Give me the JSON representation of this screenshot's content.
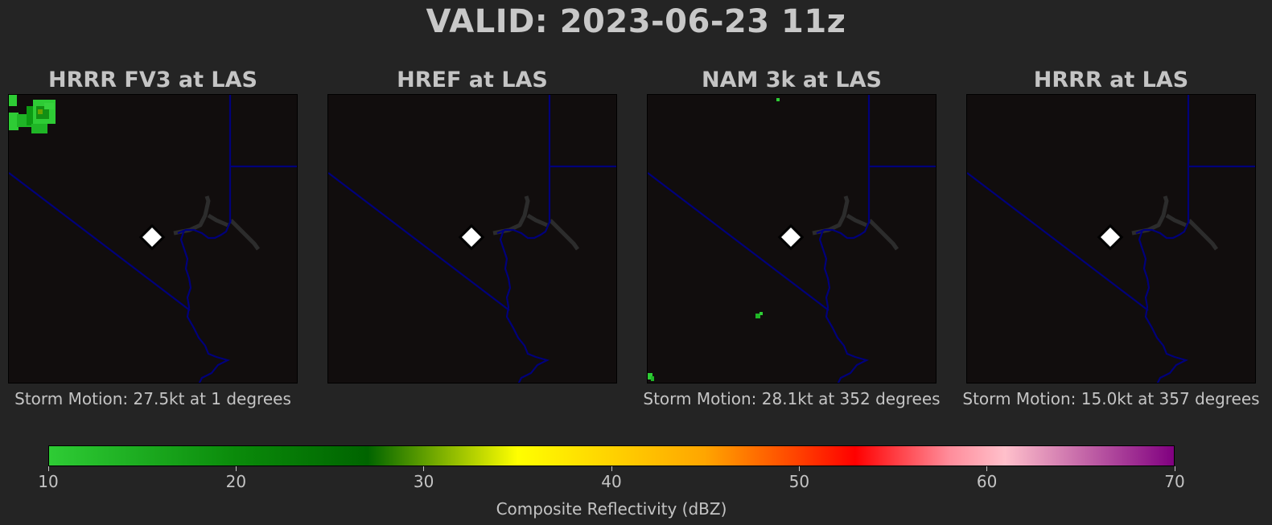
{
  "title": "VALID: 2023-06-23 11z",
  "panels": [
    {
      "title": "HRRR FV3 at LAS",
      "motion": "Storm Motion: 27.5kt at 1 degrees"
    },
    {
      "title": "HREF at LAS",
      "motion": ""
    },
    {
      "title": "NAM 3k at LAS",
      "motion": "Storm Motion: 28.1kt at 352 degrees"
    },
    {
      "title": "HRRR at LAS",
      "motion": "Storm Motion: 15.0kt at 357 degrees"
    }
  ],
  "colorbar": {
    "label": "Composite Reflectivity (dBZ)",
    "ticks": [
      "10",
      "20",
      "30",
      "40",
      "50",
      "60",
      "70"
    ],
    "min": 10,
    "max": 70,
    "stops": [
      {
        "value": 10,
        "color": "#2ecc35"
      },
      {
        "value": 20,
        "color": "#0a8a0a"
      },
      {
        "value": 27,
        "color": "#006400"
      },
      {
        "value": 35,
        "color": "#ffff00"
      },
      {
        "value": 45,
        "color": "#ffa500"
      },
      {
        "value": 50,
        "color": "#ff4000"
      },
      {
        "value": 53,
        "color": "#ff0000"
      },
      {
        "value": 58,
        "color": "#ff8c9a"
      },
      {
        "value": 61,
        "color": "#ffc0cb"
      },
      {
        "value": 70,
        "color": "#800080"
      }
    ]
  },
  "colors": {
    "background": "#242424",
    "map": "#110d0d",
    "border_lines": "#00007a",
    "water": "#2c2c2c",
    "marker": "#ffffff"
  },
  "icons": {
    "station_marker": "diamond-icon"
  }
}
